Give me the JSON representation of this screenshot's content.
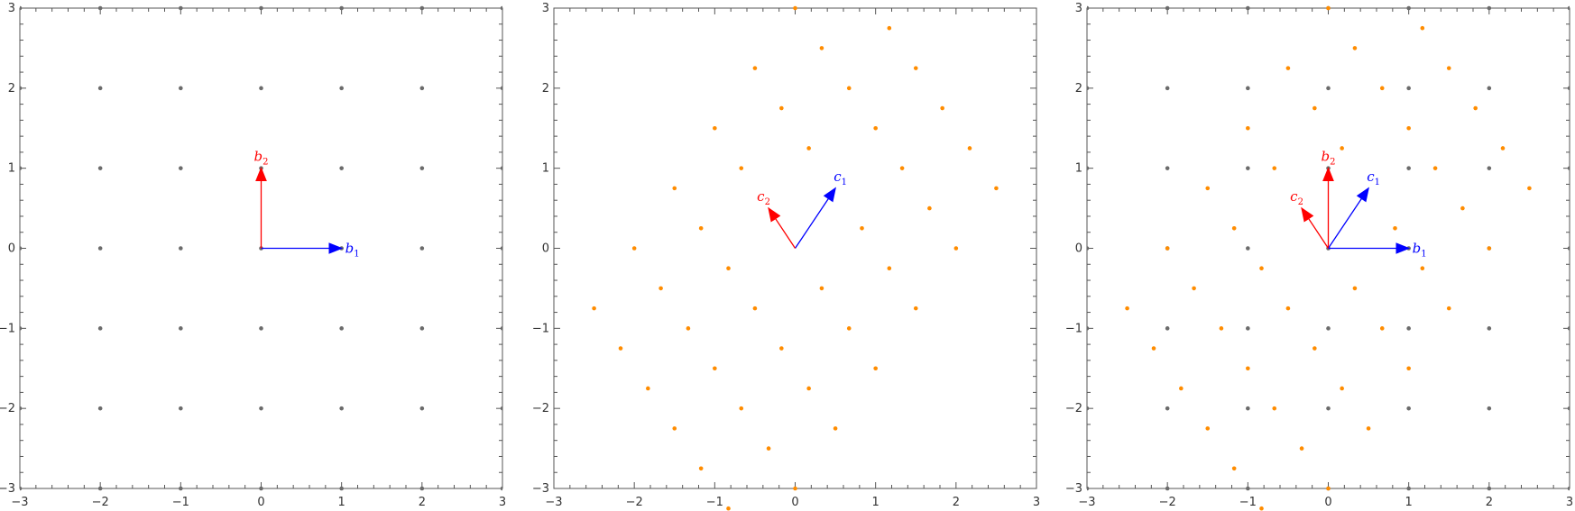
{
  "chart_data": [
    {
      "type": "scatter",
      "xlim": [
        -3,
        3
      ],
      "ylim": [
        -3,
        3
      ],
      "grid": false,
      "ticks": [
        -3,
        -2,
        -1,
        0,
        1,
        2,
        3
      ],
      "tick_labels": [
        "−3",
        "−2",
        "−1",
        "0",
        "1",
        "2",
        "3"
      ],
      "series": [
        {
          "color": "#6b6b6b",
          "points": [
            [
              -3,
              -3
            ],
            [
              -2,
              -3
            ],
            [
              -1,
              -3
            ],
            [
              0,
              -3
            ],
            [
              1,
              -3
            ],
            [
              2,
              -3
            ],
            [
              3,
              -3
            ],
            [
              -3,
              -2
            ],
            [
              -2,
              -2
            ],
            [
              -1,
              -2
            ],
            [
              0,
              -2
            ],
            [
              1,
              -2
            ],
            [
              2,
              -2
            ],
            [
              3,
              -2
            ],
            [
              -3,
              -1
            ],
            [
              -2,
              -1
            ],
            [
              -1,
              -1
            ],
            [
              0,
              -1
            ],
            [
              1,
              -1
            ],
            [
              2,
              -1
            ],
            [
              3,
              -1
            ],
            [
              -3,
              0
            ],
            [
              -2,
              0
            ],
            [
              -1,
              0
            ],
            [
              0,
              0
            ],
            [
              1,
              0
            ],
            [
              2,
              0
            ],
            [
              3,
              0
            ],
            [
              -3,
              1
            ],
            [
              -2,
              1
            ],
            [
              -1,
              1
            ],
            [
              0,
              1
            ],
            [
              1,
              1
            ],
            [
              2,
              1
            ],
            [
              3,
              1
            ],
            [
              -3,
              2
            ],
            [
              -2,
              2
            ],
            [
              -1,
              2
            ],
            [
              0,
              2
            ],
            [
              1,
              2
            ],
            [
              2,
              2
            ],
            [
              3,
              2
            ],
            [
              -3,
              3
            ],
            [
              -2,
              3
            ],
            [
              -1,
              3
            ],
            [
              0,
              3
            ],
            [
              1,
              3
            ],
            [
              2,
              3
            ],
            [
              3,
              3
            ]
          ]
        }
      ],
      "vectors": [
        {
          "from": [
            0,
            0
          ],
          "to": [
            1,
            0
          ],
          "color": "#0000ff",
          "label": "b",
          "sub": "1"
        },
        {
          "from": [
            0,
            0
          ],
          "to": [
            0,
            1
          ],
          "color": "#ff0000",
          "label": "b",
          "sub": "2"
        }
      ]
    },
    {
      "type": "scatter",
      "xlim": [
        -3,
        3
      ],
      "ylim": [
        -3,
        3
      ],
      "grid": false,
      "ticks": [
        -3,
        -2,
        -1,
        0,
        1,
        2,
        3
      ],
      "tick_labels": [
        "−3",
        "−2",
        "−1",
        "0",
        "1",
        "2",
        "3"
      ],
      "series": [
        {
          "color": "#ff8c00",
          "points": [
            [
              0,
              3
            ],
            [
              1.17,
              2.75
            ],
            [
              0.33,
              2.5
            ],
            [
              1.5,
              2.25
            ],
            [
              -0.5,
              2.25
            ],
            [
              0.67,
              2
            ],
            [
              1.83,
              1.75
            ],
            [
              -0.17,
              1.75
            ],
            [
              1,
              1.5
            ],
            [
              -1,
              1.5
            ],
            [
              0.17,
              1.25
            ],
            [
              2.17,
              1.25
            ],
            [
              -0.67,
              1
            ],
            [
              1.33,
              1
            ],
            [
              -1.5,
              0.75
            ],
            [
              2.5,
              0.75
            ],
            [
              1.67,
              0.5
            ],
            [
              0.83,
              0.25
            ],
            [
              -1.17,
              0.25
            ],
            [
              -2,
              0
            ],
            [
              2,
              0
            ],
            [
              -0.83,
              -0.25
            ],
            [
              1.17,
              -0.25
            ],
            [
              0.33,
              -0.5
            ],
            [
              -1.67,
              -0.5
            ],
            [
              -2.5,
              -0.75
            ],
            [
              -0.5,
              -0.75
            ],
            [
              1.5,
              -0.75
            ],
            [
              -1.33,
              -1
            ],
            [
              0.67,
              -1
            ],
            [
              -0.17,
              -1.25
            ],
            [
              -2.17,
              -1.25
            ],
            [
              -1,
              -1.5
            ],
            [
              1,
              -1.5
            ],
            [
              -1.83,
              -1.75
            ],
            [
              0.17,
              -1.75
            ],
            [
              -0.67,
              -2
            ],
            [
              -1.5,
              -2.25
            ],
            [
              0.5,
              -2.25
            ],
            [
              -0.33,
              -2.5
            ],
            [
              -1.17,
              -2.75
            ],
            [
              0,
              -3
            ],
            [
              -0.83,
              -3.25
            ]
          ]
        }
      ],
      "vectors": [
        {
          "from": [
            0,
            0
          ],
          "to": [
            0.5,
            0.75
          ],
          "color": "#0000ff",
          "label": "c",
          "sub": "1"
        },
        {
          "from": [
            0,
            0
          ],
          "to": [
            -0.33,
            0.5
          ],
          "color": "#ff0000",
          "label": "c",
          "sub": "2"
        }
      ]
    },
    {
      "type": "scatter",
      "xlim": [
        -3,
        3
      ],
      "ylim": [
        -3,
        3
      ],
      "grid": false,
      "ticks": [
        -3,
        -2,
        -1,
        0,
        1,
        2,
        3
      ],
      "tick_labels": [
        "−3",
        "−2",
        "−1",
        "0",
        "1",
        "2",
        "3"
      ],
      "series": [
        {
          "color": "#6b6b6b",
          "points": [
            [
              -3,
              -3
            ],
            [
              -2,
              -3
            ],
            [
              -1,
              -3
            ],
            [
              0,
              -3
            ],
            [
              1,
              -3
            ],
            [
              2,
              -3
            ],
            [
              3,
              -3
            ],
            [
              -3,
              -2
            ],
            [
              -2,
              -2
            ],
            [
              -1,
              -2
            ],
            [
              0,
              -2
            ],
            [
              1,
              -2
            ],
            [
              2,
              -2
            ],
            [
              3,
              -2
            ],
            [
              -3,
              -1
            ],
            [
              -2,
              -1
            ],
            [
              -1,
              -1
            ],
            [
              0,
              -1
            ],
            [
              1,
              -1
            ],
            [
              2,
              -1
            ],
            [
              3,
              -1
            ],
            [
              -3,
              0
            ],
            [
              -2,
              0
            ],
            [
              -1,
              0
            ],
            [
              0,
              0
            ],
            [
              1,
              0
            ],
            [
              2,
              0
            ],
            [
              3,
              0
            ],
            [
              -3,
              1
            ],
            [
              -2,
              1
            ],
            [
              -1,
              1
            ],
            [
              0,
              1
            ],
            [
              1,
              1
            ],
            [
              2,
              1
            ],
            [
              3,
              1
            ],
            [
              -3,
              2
            ],
            [
              -2,
              2
            ],
            [
              -1,
              2
            ],
            [
              0,
              2
            ],
            [
              1,
              2
            ],
            [
              2,
              2
            ],
            [
              3,
              2
            ],
            [
              -3,
              3
            ],
            [
              -2,
              3
            ],
            [
              -1,
              3
            ],
            [
              0,
              3
            ],
            [
              1,
              3
            ],
            [
              2,
              3
            ],
            [
              3,
              3
            ]
          ]
        },
        {
          "color": "#ff8c00",
          "points": [
            [
              0,
              3
            ],
            [
              1.17,
              2.75
            ],
            [
              0.33,
              2.5
            ],
            [
              1.5,
              2.25
            ],
            [
              -0.5,
              2.25
            ],
            [
              0.67,
              2
            ],
            [
              1.83,
              1.75
            ],
            [
              -0.17,
              1.75
            ],
            [
              1,
              1.5
            ],
            [
              -1,
              1.5
            ],
            [
              0.17,
              1.25
            ],
            [
              2.17,
              1.25
            ],
            [
              -0.67,
              1
            ],
            [
              1.33,
              1
            ],
            [
              -1.5,
              0.75
            ],
            [
              2.5,
              0.75
            ],
            [
              1.67,
              0.5
            ],
            [
              0.83,
              0.25
            ],
            [
              -1.17,
              0.25
            ],
            [
              -2,
              0
            ],
            [
              2,
              0
            ],
            [
              -0.83,
              -0.25
            ],
            [
              1.17,
              -0.25
            ],
            [
              0.33,
              -0.5
            ],
            [
              -1.67,
              -0.5
            ],
            [
              -2.5,
              -0.75
            ],
            [
              -0.5,
              -0.75
            ],
            [
              1.5,
              -0.75
            ],
            [
              -1.33,
              -1
            ],
            [
              0.67,
              -1
            ],
            [
              -0.17,
              -1.25
            ],
            [
              -2.17,
              -1.25
            ],
            [
              -1,
              -1.5
            ],
            [
              1,
              -1.5
            ],
            [
              -1.83,
              -1.75
            ],
            [
              0.17,
              -1.75
            ],
            [
              -0.67,
              -2
            ],
            [
              -1.5,
              -2.25
            ],
            [
              0.5,
              -2.25
            ],
            [
              -0.33,
              -2.5
            ],
            [
              -1.17,
              -2.75
            ],
            [
              0,
              -3
            ],
            [
              -0.83,
              -3.25
            ]
          ]
        }
      ],
      "vectors": [
        {
          "from": [
            0,
            0
          ],
          "to": [
            1,
            0
          ],
          "color": "#0000ff",
          "label": "b",
          "sub": "1"
        },
        {
          "from": [
            0,
            0
          ],
          "to": [
            0,
            1
          ],
          "color": "#ff0000",
          "label": "b",
          "sub": "2"
        },
        {
          "from": [
            0,
            0
          ],
          "to": [
            0.5,
            0.75
          ],
          "color": "#0000ff",
          "label": "c",
          "sub": "1"
        },
        {
          "from": [
            0,
            0
          ],
          "to": [
            -0.33,
            0.5
          ],
          "color": "#ff0000",
          "label": "c",
          "sub": "2"
        }
      ]
    }
  ]
}
